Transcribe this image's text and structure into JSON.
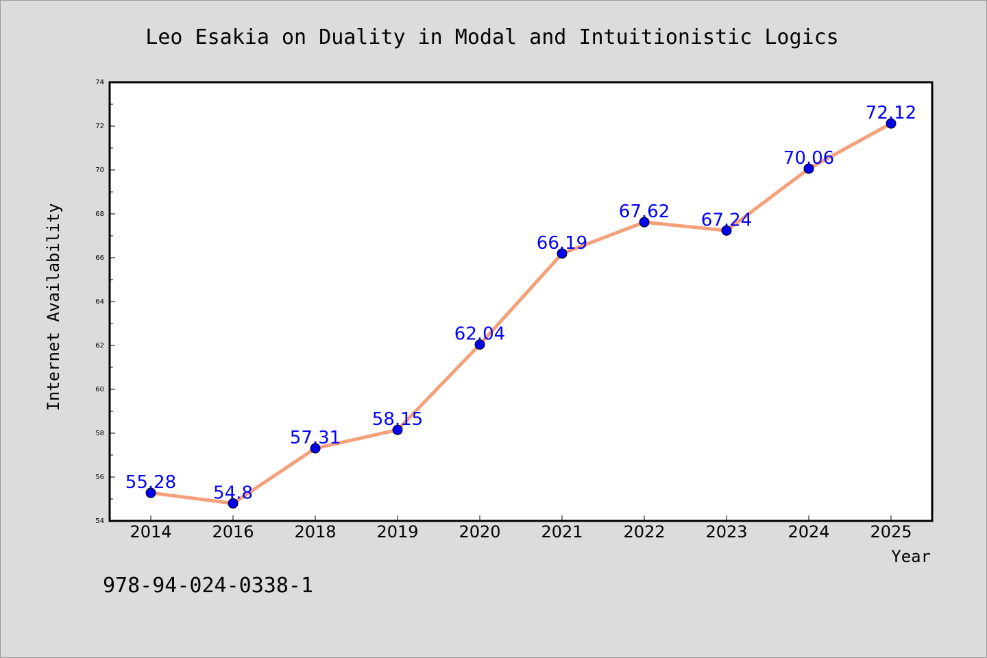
{
  "chart_data": {
    "type": "line",
    "title": "Leo Esakia on Duality in Modal and Intuitionistic Logics",
    "xlabel": "Year",
    "ylabel": "Internet Availability",
    "categories": [
      "2014",
      "2016",
      "2018",
      "2019",
      "2020",
      "2021",
      "2022",
      "2023",
      "2024",
      "2025"
    ],
    "series": [
      {
        "values": [
          55.28,
          54.8,
          57.31,
          58.15,
          62.04,
          66.19,
          67.62,
          67.24,
          70.06,
          72.12
        ],
        "data_labels": [
          "55.28",
          "54.8",
          "57.31",
          "58.15",
          "62.04",
          "66.19",
          "67.62",
          "67.24",
          "70.06",
          "72.12"
        ],
        "line_color": "#f4a07a",
        "marker_color": "#0000ee",
        "label_color": "#0000ff"
      }
    ],
    "ylim": [
      54,
      74
    ],
    "yticks": [
      "54",
      "56",
      "58",
      "60",
      "62",
      "64",
      "66",
      "68",
      "70",
      "72",
      "74"
    ],
    "grid": false,
    "legend": "none"
  },
  "footer": {
    "text": "978-94-024-0338-1"
  },
  "colors": {
    "background": "#dcdcdc",
    "plot_background": "#ffffff"
  }
}
